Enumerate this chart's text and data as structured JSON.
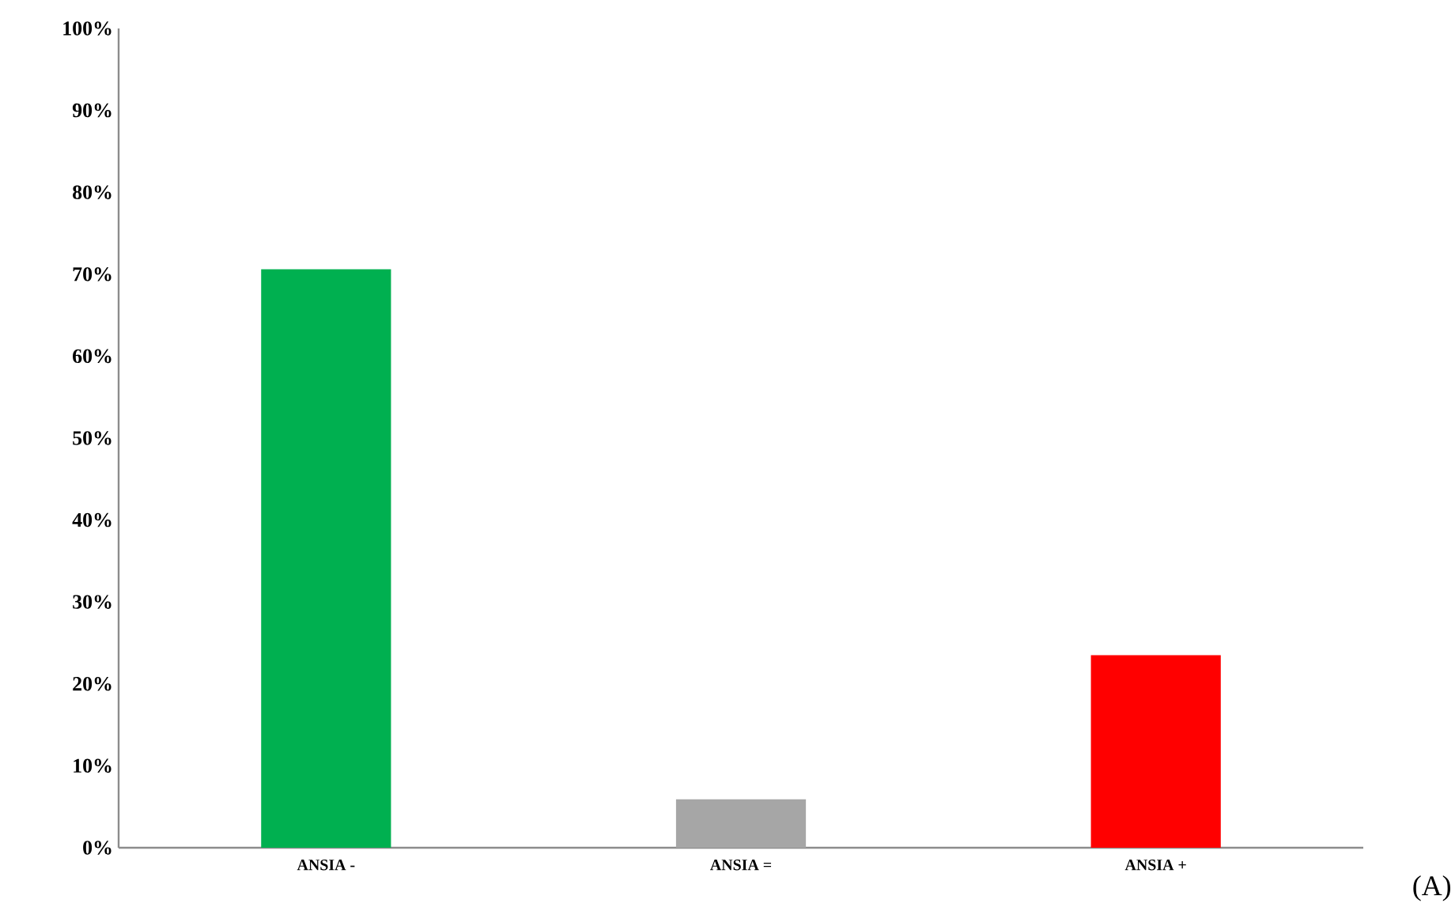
{
  "chart_data": {
    "type": "bar",
    "categories": [
      "ANSIA -",
      "ANSIA =",
      "ANSIA +"
    ],
    "values": [
      70.6,
      5.9,
      23.5
    ],
    "colors": [
      "#00b050",
      "#a6a6a6",
      "#ff0000"
    ],
    "ylim": [
      0,
      100
    ],
    "yticks": [
      {
        "value": 0,
        "label": "0%"
      },
      {
        "value": 10,
        "label": "10%"
      },
      {
        "value": 20,
        "label": "20%"
      },
      {
        "value": 30,
        "label": "30%"
      },
      {
        "value": 40,
        "label": "40%"
      },
      {
        "value": 50,
        "label": "50%"
      },
      {
        "value": 60,
        "label": "60%"
      },
      {
        "value": 70,
        "label": "70%"
      },
      {
        "value": 80,
        "label": "80%"
      },
      {
        "value": 90,
        "label": "90%"
      },
      {
        "value": 100,
        "label": "100%"
      }
    ],
    "annotations": [
      "(A)"
    ]
  }
}
